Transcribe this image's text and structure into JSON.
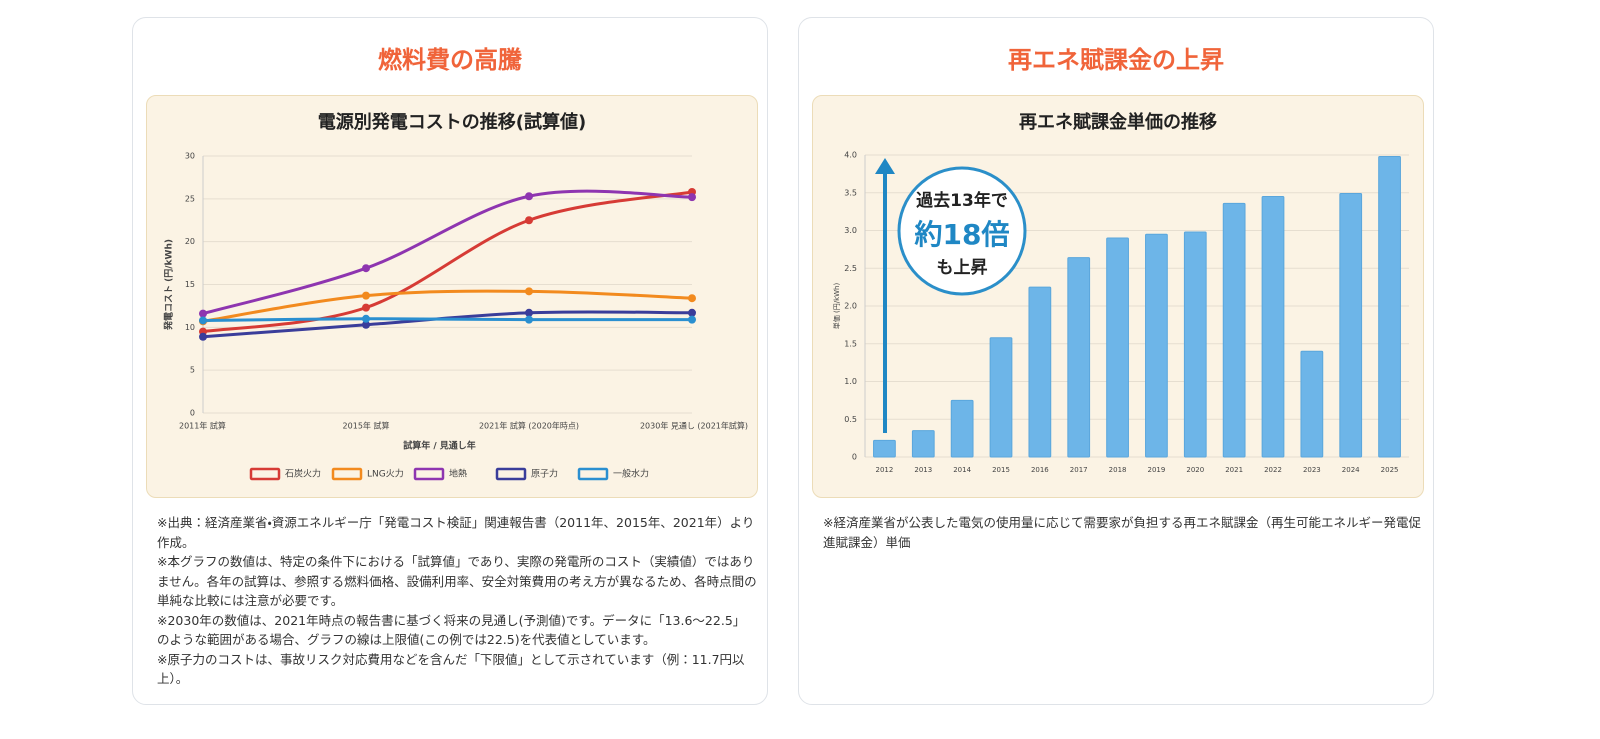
{
  "cards": [
    {
      "heading": "燃料費の高騰",
      "notes": [
        "※出典：経済産業省・資源エネルギー庁「発電コスト検証」関連報告書（2011年、2015年、2021年）より作成。",
        "※本グラフの数値は、特定の条件下における「試算値」であり、実際の発電所のコスト（実績値）ではありません。各年の試算は、参照する燃料価格、設備利用率、安全対策費用の考え方が異なるため、各時点間の単純な比較には注意が必要です。",
        "※2030年の数値は、2021年時点の報告書に基づく将来の見通し(予測値)です。データに「13.6〜22.5」のような範囲がある場合、グラフの線は上限値(この例では22.5)を代表値としています。",
        "※原子力のコストは、事故リスク対応費用などを含んだ「下限値」として示されています（例：11.7円以上）。"
      ]
    },
    {
      "heading": "再エネ賦課金の上昇",
      "notes": [
        "※経済産業省が公表した電気の使用量に応じて需要家が負担する再エネ賦課金（再生可能エネルギー発電促進賦課金）単価"
      ]
    }
  ],
  "chart_data": [
    {
      "type": "line",
      "title": "電源別発電コストの推移(試算値)",
      "x_label": "試算年 / 見通し年",
      "y_label": "発電コスト (円/kWh)",
      "categories": [
        "2011年 試算",
        "2015年 試算",
        "2021年 試算 (2020年時点)",
        "2030年 見通し (2021年試算)"
      ],
      "series": [
        {
          "name": "石炭火力",
          "color": "#d63b35",
          "values": [
            9.5,
            12.3,
            22.5,
            25.8
          ]
        },
        {
          "name": "LNG火力",
          "color": "#f28a1e",
          "values": [
            10.7,
            13.7,
            14.2,
            13.4
          ]
        },
        {
          "name": "地熱",
          "color": "#8e35b0",
          "values": [
            11.6,
            16.9,
            25.3,
            25.2
          ]
        },
        {
          "name": "原子力",
          "color": "#3a3d9a",
          "values": [
            8.9,
            10.3,
            11.7,
            11.7
          ]
        },
        {
          "name": "一般水力",
          "color": "#2a8fd0",
          "values": [
            10.8,
            11.0,
            10.9,
            10.9
          ]
        }
      ],
      "ylim": [
        0,
        30
      ],
      "yticks": [
        0,
        5,
        10,
        15,
        20,
        25,
        30
      ],
      "grid": true,
      "legend": "bottom"
    },
    {
      "type": "bar",
      "title": "再エネ賦課金単価の推移",
      "y_label": "単価 (円/kWh)",
      "categories": [
        "2012",
        "2013",
        "2014",
        "2015",
        "2016",
        "2017",
        "2018",
        "2019",
        "2020",
        "2021",
        "2022",
        "2023",
        "2024",
        "2025"
      ],
      "values": [
        0.22,
        0.35,
        0.75,
        1.58,
        2.25,
        2.64,
        2.9,
        2.95,
        2.98,
        3.36,
        3.45,
        1.4,
        3.49,
        3.98
      ],
      "color": "#6db5e8",
      "ylim": [
        0,
        4
      ],
      "yticks": [
        0,
        0.5,
        {
          "value": 1,
          "label": "1.0"
        },
        1.5,
        {
          "value": 2,
          "label": "2.0"
        },
        2.5,
        {
          "value": 3,
          "label": "3.0"
        },
        3.5,
        {
          "value": 4,
          "label": "4.0"
        }
      ],
      "grid": true,
      "annotation": [
        "過去13年で",
        "約18倍",
        "も上昇"
      ]
    }
  ]
}
